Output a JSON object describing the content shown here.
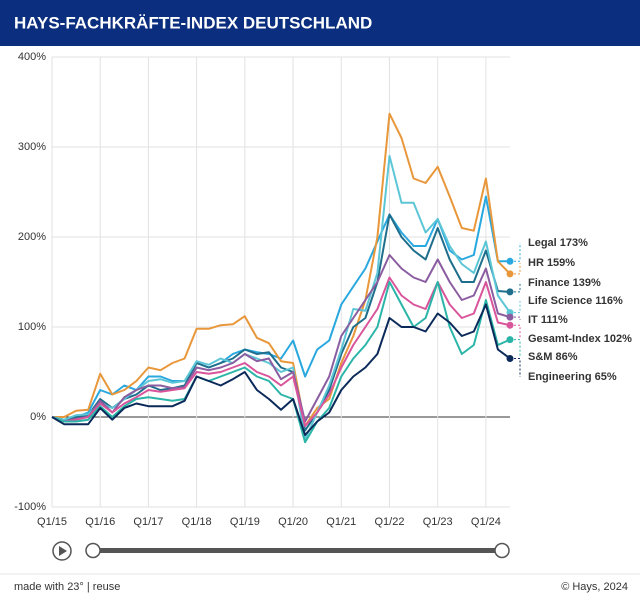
{
  "chart_data": {
    "type": "line",
    "title": "HAYS-FACHKRÄFTE-INDEX DEUTSCHLAND",
    "categories": [
      "Q1/15",
      null,
      null,
      null,
      "Q1/16",
      null,
      null,
      null,
      "Q1/17",
      null,
      null,
      null,
      "Q1/18",
      null,
      null,
      null,
      "Q1/19",
      null,
      null,
      null,
      "Q1/20",
      null,
      null,
      null,
      "Q1/21",
      null,
      null,
      null,
      "Q1/22",
      null,
      null,
      null,
      "Q1/23",
      null,
      null,
      null,
      "Q1/24",
      null,
      null
    ],
    "ylim": [
      -100,
      400
    ],
    "yticks": [
      {
        "value": -100,
        "label": "-100%"
      },
      {
        "value": 0,
        "label": "0%"
      },
      {
        "value": 100,
        "label": "100%"
      },
      {
        "value": 200,
        "label": "200%"
      },
      {
        "value": 300,
        "label": "300%"
      },
      {
        "value": 400,
        "label": "400%"
      }
    ],
    "grid": true,
    "series": [
      {
        "name": "Legal 173%",
        "color": "#29a8df",
        "values": [
          0,
          -5,
          0,
          5,
          30,
          25,
          35,
          30,
          45,
          45,
          40,
          40,
          60,
          55,
          60,
          70,
          75,
          72,
          70,
          65,
          85,
          45,
          75,
          85,
          125,
          145,
          165,
          195,
          225,
          205,
          190,
          190,
          220,
          185,
          175,
          180,
          245,
          173,
          173
        ]
      },
      {
        "name": "HR 159%",
        "color": "#e8973a",
        "values": [
          0,
          0,
          7,
          8,
          48,
          25,
          30,
          40,
          55,
          52,
          60,
          65,
          98,
          98,
          102,
          103,
          112,
          88,
          82,
          62,
          60,
          -10,
          10,
          20,
          60,
          90,
          130,
          200,
          337,
          310,
          265,
          260,
          278,
          245,
          210,
          207,
          265,
          173,
          159
        ]
      },
      {
        "name": "Finance 139%",
        "color": "#1f6e8c",
        "values": [
          0,
          -3,
          0,
          2,
          20,
          10,
          20,
          25,
          35,
          30,
          32,
          35,
          60,
          55,
          60,
          65,
          75,
          70,
          72,
          55,
          50,
          -15,
          5,
          30,
          70,
          100,
          110,
          150,
          225,
          200,
          185,
          175,
          210,
          175,
          150,
          150,
          185,
          140,
          139
        ]
      },
      {
        "name": "Life Science 116%",
        "color": "#5cc6d6",
        "values": [
          0,
          -3,
          2,
          3,
          15,
          10,
          20,
          30,
          40,
          42,
          38,
          40,
          62,
          58,
          65,
          60,
          70,
          65,
          60,
          50,
          55,
          -25,
          5,
          35,
          75,
          120,
          118,
          160,
          290,
          238,
          238,
          205,
          220,
          190,
          170,
          160,
          195,
          135,
          116
        ]
      },
      {
        "name": "IT 111%",
        "color": "#8a5ca0",
        "values": [
          0,
          -5,
          -2,
          0,
          18,
          5,
          22,
          30,
          35,
          35,
          32,
          33,
          55,
          52,
          55,
          60,
          70,
          62,
          65,
          42,
          50,
          -5,
          20,
          45,
          90,
          110,
          130,
          150,
          180,
          165,
          155,
          150,
          175,
          150,
          130,
          135,
          165,
          115,
          111
        ]
      },
      {
        "name": "Gesamt-Index 102%",
        "color": "#d9559b",
        "values": [
          0,
          -5,
          -3,
          0,
          15,
          5,
          15,
          22,
          30,
          28,
          30,
          32,
          50,
          48,
          50,
          55,
          60,
          50,
          45,
          35,
          45,
          -10,
          5,
          25,
          55,
          80,
          100,
          120,
          155,
          135,
          125,
          120,
          150,
          125,
          110,
          115,
          150,
          105,
          102
        ]
      },
      {
        "name": "S&M 86%",
        "color": "#2bb5a8",
        "values": [
          0,
          -5,
          -5,
          -3,
          12,
          0,
          12,
          20,
          22,
          20,
          18,
          20,
          45,
          40,
          45,
          50,
          55,
          45,
          40,
          25,
          20,
          -28,
          -5,
          10,
          45,
          65,
          80,
          100,
          150,
          125,
          100,
          110,
          150,
          100,
          70,
          80,
          130,
          80,
          86
        ]
      },
      {
        "name": "Engineering 65%",
        "color": "#0b2a5a",
        "values": [
          0,
          -8,
          -8,
          -8,
          10,
          -3,
          10,
          15,
          12,
          12,
          12,
          18,
          45,
          40,
          35,
          42,
          50,
          30,
          20,
          8,
          20,
          -20,
          -5,
          5,
          30,
          45,
          55,
          70,
          110,
          100,
          100,
          95,
          115,
          105,
          90,
          95,
          125,
          75,
          65
        ]
      }
    ]
  },
  "footer": {
    "made_with": "made with 23° | reuse",
    "credit": "© Hays, 2024"
  }
}
